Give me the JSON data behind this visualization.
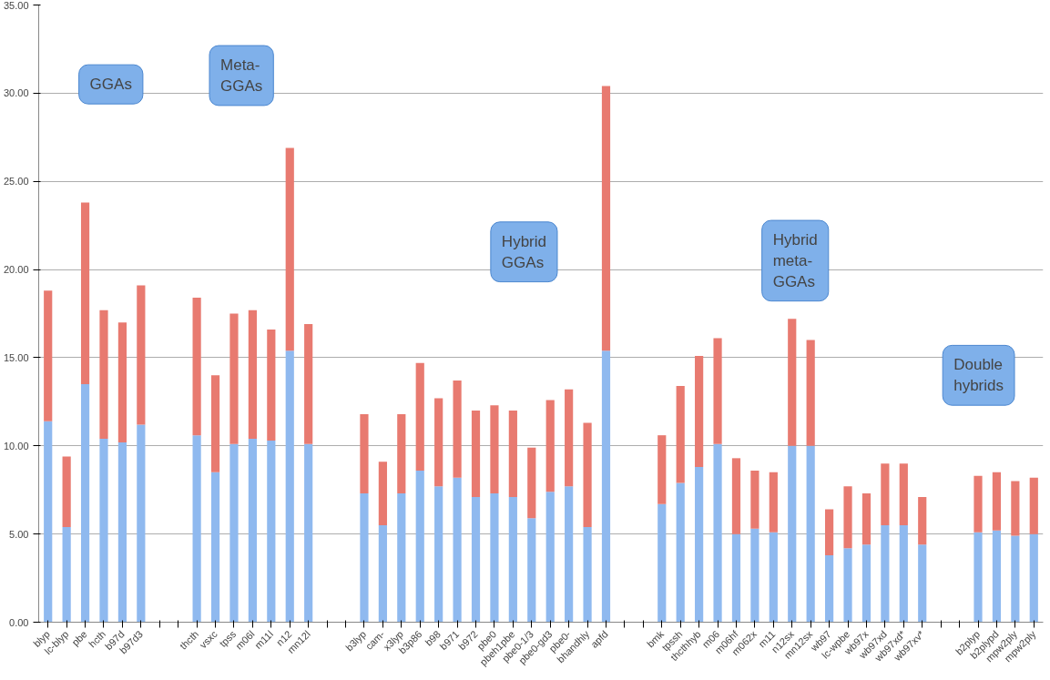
{
  "chart_data": {
    "type": "bar",
    "stacked": true,
    "grid": "y",
    "ylim": [
      0,
      35
    ],
    "yticks": [
      {
        "value": 0,
        "label": "0.00"
      },
      {
        "value": 5,
        "label": "5.00"
      },
      {
        "value": 10,
        "label": "10.00"
      },
      {
        "value": 15,
        "label": "15.00"
      },
      {
        "value": 20,
        "label": "20.00"
      },
      {
        "value": 25,
        "label": "25.00"
      },
      {
        "value": 30,
        "label": "30.00"
      },
      {
        "value": 35,
        "label": "35.00"
      }
    ],
    "categories": [
      "blyp",
      "lc-blyp",
      "pbe",
      "hcth",
      "b97d",
      "b97d3",
      null,
      null,
      "thcth",
      "vsxc",
      "tpss",
      "m06l",
      "m11l",
      "n12",
      "mn12l",
      null,
      null,
      "b3lyp",
      "cam-",
      "x3lyp",
      "b3p86",
      "b98",
      "b971",
      "b972",
      "pbe0",
      "pbeh1pbe",
      "pbe0-1/3",
      "pbe0-gd3",
      "pbe0-",
      "bhandhly",
      "apfd",
      null,
      null,
      "bmk",
      "tpssh",
      "thcthhyb",
      "m06",
      "m06hf",
      "m062x",
      "m11",
      "n12sx",
      "mn12sx",
      "wb97",
      "lc-wpbe",
      "wb97x",
      "wb97xd",
      "wb97xd*",
      "wb97xv*",
      null,
      null,
      "b2plyp",
      "b2plypd",
      "mpw2ply",
      "mpw2ply"
    ],
    "series": [
      {
        "color": "#8fb9ef",
        "values": [
          11.4,
          5.4,
          13.5,
          10.4,
          10.2,
          11.2,
          null,
          null,
          10.6,
          8.5,
          10.1,
          10.4,
          10.3,
          15.4,
          10.1,
          null,
          null,
          7.3,
          5.5,
          7.3,
          8.6,
          7.7,
          8.2,
          7.1,
          7.3,
          7.1,
          5.9,
          7.4,
          7.7,
          5.4,
          15.4,
          null,
          null,
          6.7,
          7.9,
          8.8,
          10.1,
          5.0,
          5.3,
          5.1,
          10.0,
          10.0,
          3.8,
          4.2,
          4.4,
          5.5,
          5.5,
          4.4,
          null,
          null,
          5.1,
          5.2,
          4.9,
          5.0
        ]
      },
      {
        "color": "#e87a70",
        "values": [
          7.4,
          4.0,
          10.3,
          7.3,
          6.8,
          7.9,
          null,
          null,
          7.8,
          5.5,
          7.4,
          7.3,
          6.3,
          11.5,
          6.8,
          null,
          null,
          4.5,
          3.6,
          4.5,
          6.1,
          5.0,
          5.5,
          4.9,
          5.0,
          4.9,
          4.0,
          5.2,
          5.5,
          5.9,
          15.0,
          null,
          null,
          3.9,
          5.5,
          6.3,
          6.0,
          4.3,
          3.3,
          3.4,
          7.2,
          6.0,
          2.6,
          3.5,
          2.9,
          3.5,
          3.5,
          2.7,
          null,
          null,
          3.2,
          3.3,
          3.1,
          3.2
        ]
      }
    ],
    "annotations": [
      "GGAs",
      "Meta-\nGGAs",
      "Hybrid\nGGAs",
      "Hybrid\nmeta-\nGGAs",
      "Double\nhybrids"
    ]
  }
}
